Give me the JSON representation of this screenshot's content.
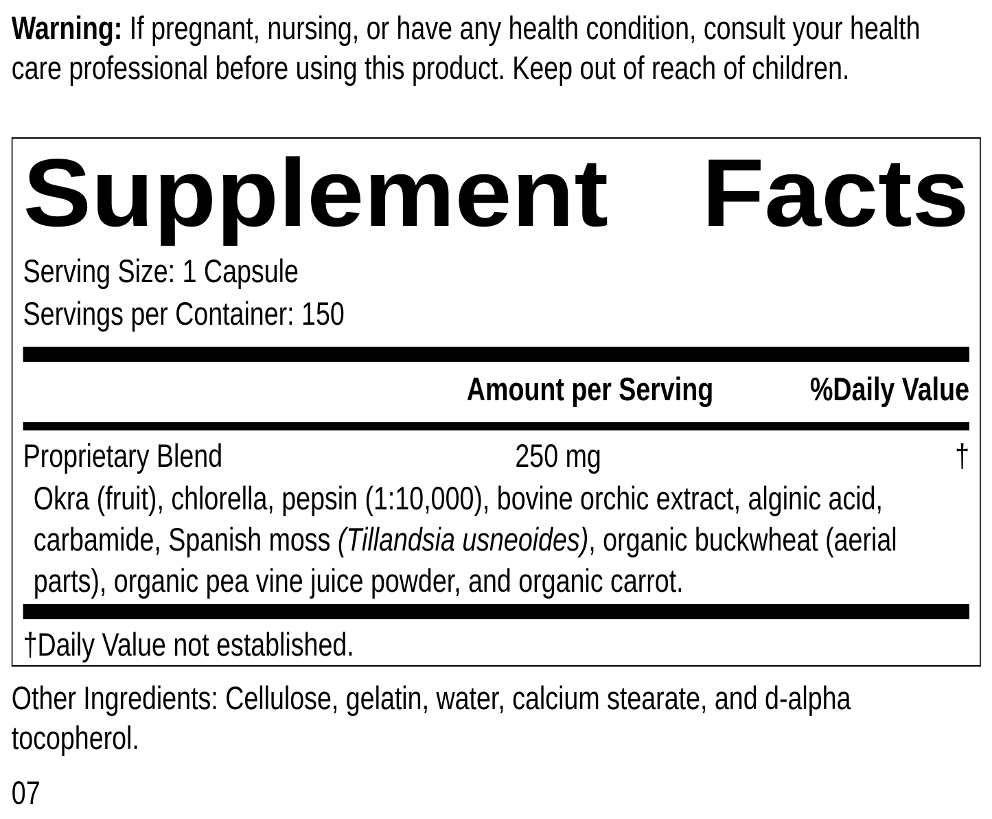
{
  "warning": {
    "label": "Warning:",
    "text": "If pregnant, nursing, or have any health condition, consult your health care professional before using this product. Keep out of reach of children."
  },
  "facts": {
    "title": "Supplement Facts",
    "serving_size": "Serving Size: 1 Capsule",
    "servings_per_container": "Servings per Container: 150",
    "header": {
      "amount": "Amount per Serving",
      "daily_value": "%Daily Value"
    },
    "rows": [
      {
        "name": "Proprietary Blend",
        "amount": "250 mg",
        "daily_value": "†"
      }
    ],
    "ingredients": {
      "before": "Okra (fruit), chlorella, pepsin (1:10,000), bovine orchic extract, alginic acid, carbamide, Spanish moss ",
      "italic": "(Tillandsia usneoides)",
      "after": ", organic buckwheat (aerial parts), organic pea vine juice powder, and organic carrot."
    },
    "footnote": "†Daily Value not established."
  },
  "other_ingredients": "Other Ingredients: Cellulose, gelatin, water, calcium stearate, and d-alpha tocopherol.",
  "code": "07"
}
